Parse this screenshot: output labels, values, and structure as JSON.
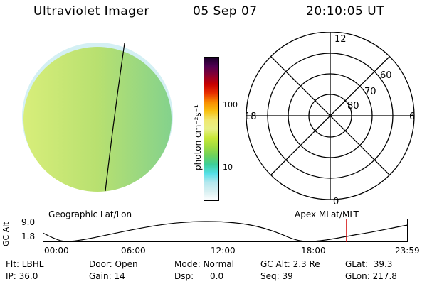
{
  "header": {
    "title": "Ultraviolet Imager",
    "date": "05 Sep 07",
    "time": "20:10:05 UT"
  },
  "colorbar": {
    "unit_label": "photon cm⁻²s⁻¹",
    "tick_100": "100",
    "tick_10": "10",
    "colors": [
      "#ffffff",
      "#d8f0f2",
      "#b4e8ee",
      "#55e0e8",
      "#3ccf9a",
      "#6ed25c",
      "#a0dc40",
      "#c8e838",
      "#e8f088",
      "#f0e870",
      "#f8c010",
      "#f88c00",
      "#e83000",
      "#c80000",
      "#8a0030",
      "#500050",
      "#1a002a"
    ]
  },
  "globe": {
    "colors": {
      "left": "#d8ee7a",
      "mid": "#b8e070",
      "right": "#84d28c",
      "rim": "#d4f0f4"
    }
  },
  "polar": {
    "mlt_labels": {
      "top": "12",
      "left": "18",
      "right": "6",
      "bottom": "0"
    },
    "mlat_labels": [
      "60",
      "70",
      "80"
    ]
  },
  "orbit_plot": {
    "left_title": "Geographic Lat/Lon",
    "right_title": "Apex MLat/MLT",
    "ylabel": "GC Alt",
    "ytick_top": "9.0",
    "ytick_bottom": "1.8",
    "xticks": [
      "00:00",
      "06:00",
      "12:00",
      "18:00",
      "23:59"
    ],
    "marker_time": "20:10",
    "marker_color": "#d00000"
  },
  "footer": {
    "filter": "Flt: LBHL",
    "door": "Door: Open",
    "mode": "Mode: Normal",
    "gc_alt": "GC Alt: 2.3 Re",
    "glat": "GLat:  39.3",
    "ip": "IP: 36.0",
    "gain": "Gain: 14",
    "dsp": "Dsp:      0.0",
    "seq": "Seq: 39",
    "glon": "GLon: 217.8"
  }
}
